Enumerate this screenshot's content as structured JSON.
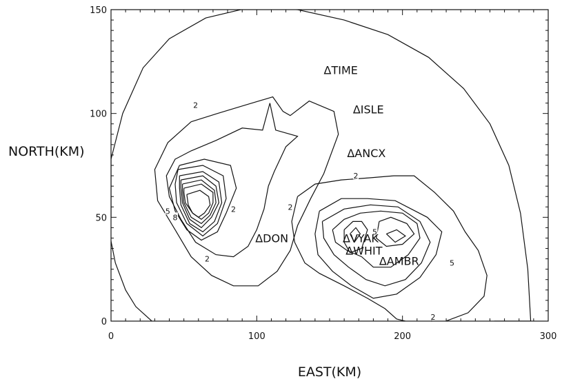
{
  "chart_data": {
    "type": "contour",
    "title": "",
    "xlabel": "EAST(KM)",
    "ylabel": "NORTH(KM)",
    "xlim": [
      0,
      300
    ],
    "ylim": [
      0,
      150
    ],
    "x_ticks": [
      0,
      100,
      200,
      300
    ],
    "y_ticks": [
      0,
      50,
      100,
      150
    ],
    "x_tick_labels": [
      "0",
      "100",
      "200",
      "300"
    ],
    "y_tick_labels": [
      "0",
      "50",
      "100",
      "150"
    ],
    "stations": [
      {
        "name": "TIME",
        "label": "ΔTIME",
        "x": 146,
        "y": 121
      },
      {
        "name": "ISLE",
        "label": "ΔISLE",
        "x": 166,
        "y": 102
      },
      {
        "name": "ANCX",
        "label": "ΔANCX",
        "x": 162,
        "y": 81
      },
      {
        "name": "DON",
        "label": "ΔDON",
        "x": 99,
        "y": 40
      },
      {
        "name": "VYAK",
        "label": "ΔVYAK",
        "x": 159,
        "y": 40
      },
      {
        "name": "WHIT",
        "label": "ΔWHIT",
        "x": 161,
        "y": 34
      },
      {
        "name": "AMBR",
        "label": "ΔAMBR",
        "x": 184,
        "y": 29
      }
    ],
    "contour_labels": [
      {
        "text": "2",
        "x": 58,
        "y": 104
      },
      {
        "text": "2",
        "x": 66,
        "y": 30
      },
      {
        "text": "2",
        "x": 84,
        "y": 54
      },
      {
        "text": "5",
        "x": 39,
        "y": 53
      },
      {
        "text": "8",
        "x": 44,
        "y": 50
      },
      {
        "text": "2",
        "x": 123,
        "y": 55
      },
      {
        "text": "2",
        "x": 168,
        "y": 70
      },
      {
        "text": "5",
        "x": 181,
        "y": 43
      },
      {
        "text": "5",
        "x": 234,
        "y": 28
      },
      {
        "text": "2",
        "x": 221,
        "y": 2
      }
    ],
    "contours": [
      {
        "level": 1,
        "points": [
          [
            0,
            50
          ],
          [
            0,
            78
          ],
          [
            8,
            100
          ],
          [
            22,
            122
          ],
          [
            40,
            136
          ],
          [
            65,
            146
          ],
          [
            95,
            151
          ],
          [
            128,
            150
          ],
          [
            160,
            145
          ],
          [
            190,
            138
          ],
          [
            218,
            127
          ],
          [
            242,
            112
          ],
          [
            260,
            95
          ],
          [
            273,
            75
          ],
          [
            281,
            52
          ],
          [
            286,
            25
          ],
          [
            288,
            0
          ],
          [
            263,
            0
          ]
        ]
      },
      {
        "level": 1,
        "points": [
          [
            -1,
            42
          ],
          [
            3,
            28
          ],
          [
            10,
            15
          ],
          [
            17,
            7
          ],
          [
            28,
            0
          ]
        ]
      },
      {
        "level": 2,
        "points": [
          [
            55,
            96
          ],
          [
            73,
            100
          ],
          [
            92,
            104
          ],
          [
            111,
            108
          ],
          [
            118,
            101
          ],
          [
            123,
            99
          ],
          [
            136,
            106
          ],
          [
            153,
            101
          ],
          [
            156,
            90
          ],
          [
            146,
            71
          ],
          [
            137,
            59
          ],
          [
            128,
            46
          ],
          [
            123,
            34
          ],
          [
            114,
            24
          ],
          [
            101,
            17
          ],
          [
            84,
            17
          ],
          [
            69,
            22
          ],
          [
            55,
            31
          ],
          [
            44,
            44
          ],
          [
            32,
            58
          ],
          [
            30,
            73
          ],
          [
            39,
            86
          ],
          [
            55,
            96
          ]
        ]
      },
      {
        "level": 3,
        "points": [
          [
            55,
            82
          ],
          [
            72,
            87
          ],
          [
            90,
            93
          ],
          [
            104,
            92
          ],
          [
            109,
            105
          ],
          [
            113,
            92
          ],
          [
            128,
            89
          ],
          [
            120,
            84
          ],
          [
            112,
            72
          ],
          [
            108,
            65
          ],
          [
            105,
            54
          ],
          [
            100,
            44
          ],
          [
            94,
            36
          ],
          [
            84,
            31
          ],
          [
            72,
            32
          ],
          [
            58,
            38
          ],
          [
            48,
            49
          ],
          [
            40,
            60
          ],
          [
            38,
            70
          ],
          [
            44,
            78
          ],
          [
            55,
            82
          ]
        ]
      },
      {
        "level": 4,
        "points": [
          [
            47,
            75
          ],
          [
            64,
            78
          ],
          [
            82,
            75
          ],
          [
            86,
            64
          ],
          [
            79,
            52
          ],
          [
            73,
            43
          ],
          [
            62,
            39
          ],
          [
            52,
            44
          ],
          [
            44,
            53
          ],
          [
            40,
            64
          ],
          [
            47,
            75
          ]
        ]
      },
      {
        "level": 5,
        "points": [
          [
            46,
            73
          ],
          [
            63,
            75
          ],
          [
            77,
            70
          ],
          [
            79,
            59
          ],
          [
            73,
            47
          ],
          [
            63,
            41
          ],
          [
            52,
            47
          ],
          [
            45,
            57
          ],
          [
            44,
            66
          ],
          [
            46,
            73
          ]
        ]
      },
      {
        "level": 6,
        "points": [
          [
            47,
            70
          ],
          [
            63,
            72
          ],
          [
            74,
            67
          ],
          [
            76,
            57
          ],
          [
            71,
            48
          ],
          [
            63,
            43
          ],
          [
            54,
            47
          ],
          [
            48,
            56
          ],
          [
            47,
            64
          ],
          [
            47,
            70
          ]
        ]
      },
      {
        "level": 7,
        "points": [
          [
            48,
            68
          ],
          [
            63,
            70
          ],
          [
            72,
            65
          ],
          [
            74,
            57
          ],
          [
            69,
            50
          ],
          [
            62,
            45
          ],
          [
            54,
            49
          ],
          [
            49,
            57
          ],
          [
            48,
            64
          ],
          [
            48,
            68
          ]
        ]
      },
      {
        "level": 8,
        "points": [
          [
            49,
            66
          ],
          [
            62,
            68
          ],
          [
            71,
            63
          ],
          [
            72,
            57
          ],
          [
            68,
            51
          ],
          [
            62,
            47
          ],
          [
            55,
            50
          ],
          [
            50,
            57
          ],
          [
            49,
            63
          ],
          [
            49,
            66
          ]
        ]
      },
      {
        "level": 9,
        "points": [
          [
            50,
            64
          ],
          [
            62,
            66
          ],
          [
            70,
            62
          ],
          [
            70,
            57
          ],
          [
            67,
            52
          ],
          [
            62,
            49
          ],
          [
            56,
            52
          ],
          [
            51,
            57
          ],
          [
            50,
            62
          ],
          [
            50,
            64
          ]
        ]
      },
      {
        "level": 10,
        "points": [
          [
            52,
            61
          ],
          [
            61,
            63
          ],
          [
            67,
            60
          ],
          [
            68,
            56
          ],
          [
            64,
            52
          ],
          [
            60,
            50
          ],
          [
            56,
            52
          ],
          [
            53,
            56
          ],
          [
            52,
            61
          ]
        ]
      },
      {
        "level": 2,
        "points": [
          [
            128,
            60
          ],
          [
            140,
            66
          ],
          [
            158,
            68
          ],
          [
            177,
            69
          ],
          [
            194,
            70
          ],
          [
            208,
            70
          ],
          [
            222,
            62
          ],
          [
            235,
            53
          ],
          [
            243,
            43
          ],
          [
            252,
            34
          ],
          [
            258,
            22
          ],
          [
            256,
            12
          ],
          [
            245,
            4
          ],
          [
            226,
            -1
          ],
          [
            208,
            -1
          ],
          [
            196,
            1
          ],
          [
            188,
            6
          ],
          [
            176,
            11
          ],
          [
            160,
            17
          ],
          [
            143,
            23
          ],
          [
            133,
            28
          ],
          [
            126,
            38
          ],
          [
            124,
            48
          ],
          [
            128,
            60
          ]
        ]
      },
      {
        "level": 3,
        "points": [
          [
            143,
            53
          ],
          [
            158,
            59
          ],
          [
            176,
            59
          ],
          [
            195,
            58
          ],
          [
            217,
            50
          ],
          [
            227,
            43
          ],
          [
            223,
            32
          ],
          [
            212,
            21
          ],
          [
            196,
            13
          ],
          [
            180,
            11
          ],
          [
            165,
            17
          ],
          [
            152,
            24
          ],
          [
            142,
            32
          ],
          [
            140,
            42
          ],
          [
            143,
            53
          ]
        ]
      },
      {
        "level": 4,
        "points": [
          [
            145,
            48
          ],
          [
            160,
            54
          ],
          [
            178,
            56
          ],
          [
            197,
            55
          ],
          [
            212,
            48
          ],
          [
            219,
            38
          ],
          [
            213,
            28
          ],
          [
            202,
            20
          ],
          [
            188,
            17
          ],
          [
            175,
            20
          ],
          [
            163,
            26
          ],
          [
            153,
            32
          ],
          [
            146,
            40
          ],
          [
            145,
            48
          ]
        ]
      },
      {
        "level": 5,
        "points": [
          [
            152,
            44
          ],
          [
            160,
            49
          ],
          [
            171,
            52
          ],
          [
            185,
            53
          ],
          [
            200,
            52
          ],
          [
            210,
            47
          ],
          [
            212,
            40
          ],
          [
            204,
            32
          ],
          [
            192,
            26
          ],
          [
            180,
            26
          ],
          [
            172,
            31
          ],
          [
            162,
            34
          ],
          [
            154,
            38
          ],
          [
            152,
            44
          ]
        ]
      },
      {
        "level": 6,
        "points": [
          [
            160,
            44
          ],
          [
            166,
            48
          ],
          [
            172,
            48
          ],
          [
            176,
            44
          ],
          [
            172,
            35
          ],
          [
            164,
            33
          ],
          [
            160,
            38
          ],
          [
            160,
            44
          ]
        ]
      },
      {
        "level": 6,
        "points": [
          [
            184,
            48
          ],
          [
            192,
            50
          ],
          [
            203,
            47
          ],
          [
            208,
            42
          ],
          [
            200,
            37
          ],
          [
            189,
            36
          ],
          [
            182,
            40
          ],
          [
            184,
            48
          ]
        ]
      },
      {
        "level": 7,
        "points": [
          [
            164,
            42
          ],
          [
            168,
            45
          ],
          [
            171,
            42
          ],
          [
            167,
            38
          ],
          [
            164,
            42
          ]
        ]
      },
      {
        "level": 7,
        "points": [
          [
            189,
            42
          ],
          [
            196,
            44
          ],
          [
            202,
            41
          ],
          [
            195,
            38
          ],
          [
            189,
            42
          ]
        ]
      }
    ]
  }
}
